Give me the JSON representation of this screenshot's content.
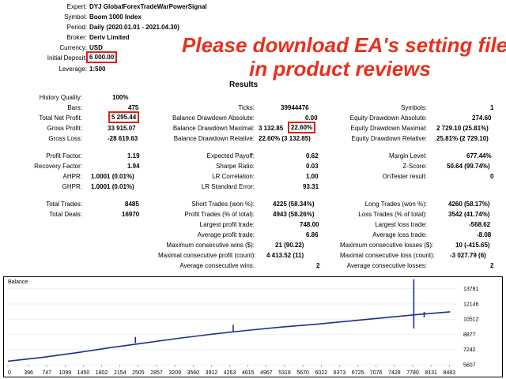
{
  "header": {
    "expert_label": "Expert:",
    "expert": "DYJ GlobalForexTradeWarPowerSignal",
    "symbol_label": "Symbol:",
    "symbol": "Boom 1000 Index",
    "period_label": "Period:",
    "period": "Daily (2020.01.01 - 2021.04.30)",
    "broker_label": "Broker:",
    "broker": "Deriv Limited",
    "currency_label": "Currency:",
    "currency": "USD",
    "deposit_label": "Initial Deposit:",
    "deposit": "6 000.00",
    "leverage_label": "Leverage:",
    "leverage": "1:500"
  },
  "promo": {
    "line1": "Please download EA's setting file",
    "line2": "in product reviews",
    "color": "#e8301c"
  },
  "results_title": "Results",
  "stats": {
    "history_quality_label": "History Quality:",
    "history_quality": "100%",
    "bars_label": "Bars:",
    "bars": "475",
    "ticks_label": "Ticks:",
    "ticks": "39944476",
    "symbols_label": "Symbols:",
    "symbols": "1",
    "net_profit_label": "Total Net Profit:",
    "net_profit": "5 295.44",
    "bal_dd_abs_label": "Balance Drawdown Absolute:",
    "bal_dd_abs": "0.00",
    "eq_dd_abs_label": "Equity Drawdown Absolute:",
    "eq_dd_abs": "274.60",
    "gross_profit_label": "Gross Profit:",
    "gross_profit": "33 915.07",
    "bal_dd_max_label": "Balance Drawdown Maximal:",
    "bal_dd_max_a": "3 132.85",
    "bal_dd_max_b": "22.60%",
    "eq_dd_max_label": "Equity Drawdown Maximal:",
    "eq_dd_max": "2 729.10 (25.81%)",
    "gross_loss_label": "Gross Loss:",
    "gross_loss": "-28 619.63",
    "bal_dd_rel_label": "Balance Drawdown Relative:",
    "bal_dd_rel": "22.60% (3 132.85)",
    "eq_dd_rel_label": "Equity Drawdown Relative:",
    "eq_dd_rel": "25.81% (2 729.10)",
    "profit_factor_label": "Profit Factor:",
    "profit_factor": "1.19",
    "expected_payoff_label": "Expected Payoff:",
    "expected_payoff": "0.62",
    "margin_level_label": "Margin Level:",
    "margin_level": "677.44%",
    "recovery_factor_label": "Recovery Factor:",
    "recovery_factor": "1.94",
    "sharpe_label": "Sharpe Ratio:",
    "sharpe": "0.03",
    "zscore_label": "Z-Score:",
    "zscore": "50.64 (99.74%)",
    "ahpr_label": "AHPR:",
    "ahpr": "1.0001 (0.01%)",
    "lr_corr_label": "LR Correlation:",
    "lr_corr": "1.00",
    "ontester_label": "OnTester result:",
    "ontester": "0",
    "ghpr_label": "GHPR:",
    "ghpr": "1.0001 (0.01%)",
    "lr_err_label": "LR Standard Error:",
    "lr_err": "93.31",
    "total_trades_label": "Total Trades:",
    "total_trades": "8485",
    "short_trades_label": "Short Trades (won %):",
    "short_trades": "4225 (58.34%)",
    "long_trades_label": "Long Trades (won %):",
    "long_trades": "4260 (58.17%)",
    "total_deals_label": "Total Deals:",
    "total_deals": "16970",
    "profit_trades_label": "Profit Trades (% of total):",
    "profit_trades": "4943 (58.26%)",
    "loss_trades_label": "Loss Trades (% of total):",
    "loss_trades": "3542 (41.74%)",
    "largest_profit_label": "Largest profit trade:",
    "largest_profit": "748.00",
    "largest_loss_label": "Largest loss trade:",
    "largest_loss": "-568.62",
    "avg_profit_label": "Average profit trade:",
    "avg_profit": "6.86",
    "avg_loss_label": "Average loss trade:",
    "avg_loss": "-8.08",
    "max_cons_wins_label": "Maximum consecutive wins ($):",
    "max_cons_wins": "21 (90.22)",
    "max_cons_losses_label": "Maximum consecutive losses ($):",
    "max_cons_losses": "10 (-415.65)",
    "maximal_cons_profit_label": "Maximal consecutive profit (count):",
    "maximal_cons_profit": "4 413.52 (11)",
    "maximal_cons_loss_label": "Maximal consecutive loss (count):",
    "maximal_cons_loss": "-3 027.79 (6)",
    "avg_cons_wins_label": "Average consecutive wins:",
    "avg_cons_wins": "2",
    "avg_cons_losses_label": "Average consecutive losses:",
    "avg_cons_losses": "2"
  },
  "chart_data": {
    "type": "line",
    "title": "Balance",
    "series": [
      {
        "values": [
          6000,
          6400,
          6900,
          7450,
          7950,
          8450,
          8900,
          9300,
          9650,
          9950,
          10300,
          10650,
          11000,
          11300
        ]
      }
    ],
    "spikes": [
      {
        "x": 2450,
        "low": 7950,
        "high": 8600
      },
      {
        "x": 4330,
        "low": 9200,
        "high": 9900
      },
      {
        "x": 7800,
        "low": 9500,
        "high": 14800
      },
      {
        "x": 8000,
        "low": 10700,
        "high": 11300
      }
    ],
    "x": [
      0,
      655,
      1310,
      1965,
      2620,
      3275,
      3930,
      4585,
      5240,
      5895,
      6550,
      7205,
      7860,
      8500
    ],
    "x_ticks": [
      "0",
      "396",
      "747",
      "1099",
      "1450",
      "1802",
      "2154",
      "2505",
      "2857",
      "3209",
      "3560",
      "3912",
      "4263",
      "4615",
      "4967",
      "5318",
      "5670",
      "6022",
      "6373",
      "6725",
      "7076",
      "7428",
      "7780",
      "8131",
      "8483"
    ],
    "y_ticks": [
      "13781",
      "12146",
      "10512",
      "8877",
      "7242",
      "5607"
    ],
    "ylim": [
      5607,
      14600
    ],
    "xlim": [
      0,
      8600
    ],
    "line_color": "#1f2f8c"
  }
}
